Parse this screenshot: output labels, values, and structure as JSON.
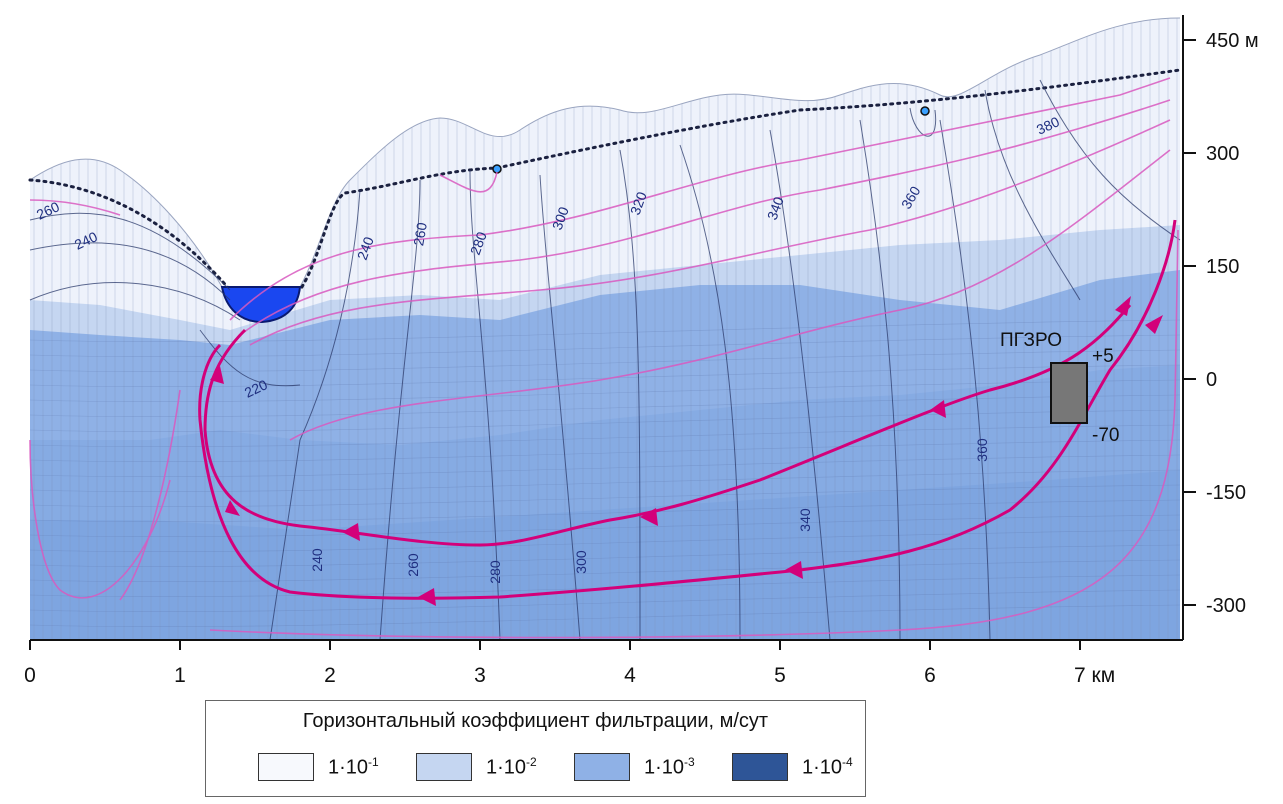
{
  "diagram": {
    "y_axis_labels": [
      "450 м",
      "300",
      "150",
      "0",
      "-150",
      "-300"
    ],
    "x_axis_labels": [
      "0",
      "1",
      "2",
      "3",
      "4",
      "5",
      "6",
      "7 км"
    ],
    "contours": [
      {
        "text": "260",
        "rot": -25
      },
      {
        "text": "240",
        "rot": -25
      },
      {
        "text": "220",
        "rot": -25
      },
      {
        "text": "240",
        "rot": -70
      },
      {
        "text": "260",
        "rot": -80
      },
      {
        "text": "280",
        "rot": -70
      },
      {
        "text": "300",
        "rot": -70
      },
      {
        "text": "320",
        "rot": -70
      },
      {
        "text": "340",
        "rot": -70
      },
      {
        "text": "360",
        "rot": -60
      },
      {
        "text": "380",
        "rot": -25
      },
      {
        "text": "360",
        "rot": -90
      },
      {
        "text": "340",
        "rot": -90
      },
      {
        "text": "240",
        "rot": -90
      },
      {
        "text": "260",
        "rot": -90
      },
      {
        "text": "280",
        "rot": -90
      },
      {
        "text": "300",
        "rot": -90
      }
    ],
    "facility_label": "ПГЗРО",
    "facility_top_label": "+5",
    "facility_bottom_label": "-70",
    "colors": {
      "layer_1": "#eef2fb",
      "layer_2": "#c5d6f1",
      "layer_3": "#8fb1e6",
      "layer_4": "#7ea5e0",
      "river": "#1a47f0",
      "flowline": "#d3007a",
      "thin_flow": "#d95ac0",
      "contour": "#2b3a6b",
      "facility": "#777777"
    }
  },
  "legend": {
    "title": "Горизонтальный коэффициент фильтрации, м/сут",
    "items": [
      {
        "base": "1·10",
        "exp": "-1",
        "color": "#f7f9fd"
      },
      {
        "base": "1·10",
        "exp": "-2",
        "color": "#c5d6f1"
      },
      {
        "base": "1·10",
        "exp": "-3",
        "color": "#8fb1e6"
      },
      {
        "base": "1·10",
        "exp": "-4",
        "color": "#2e5597"
      }
    ]
  }
}
